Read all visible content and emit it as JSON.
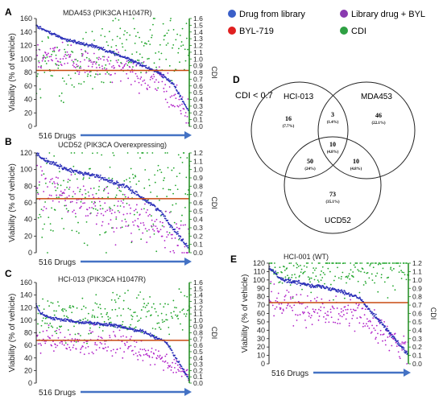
{
  "legend": {
    "items": [
      {
        "label": "Drug from library",
        "color": "#3a5fc8"
      },
      {
        "label": "Library drug + BYL",
        "color": "#8a3ab0"
      },
      {
        "label": "BYL-719",
        "color": "#e02020"
      },
      {
        "label": "CDI",
        "color": "#2ea043"
      }
    ]
  },
  "colors": {
    "curve": "#2b2fb8",
    "combo": "#b020c8",
    "cdi": "#1fa52a",
    "byl_line": "#c84a10",
    "cdi_axis": "#1e8a1e",
    "arrow": "#4472c4"
  },
  "panels": [
    {
      "letter": "A",
      "title": "MDA453 (PIK3CA H1047R)",
      "xlabel": "516 Drugs",
      "ylabel": "Viability (% of vehicle)",
      "y2label": "CDI"
    },
    {
      "letter": "B",
      "title": "UCD52 (PIK3CA Overexpressing)",
      "xlabel": "516 Drugs",
      "ylabel": "Viability (% of vehicle)",
      "y2label": "CDI"
    },
    {
      "letter": "C",
      "title": "HCI-013 (PIK3CA H1047R)",
      "xlabel": "516 Drugs",
      "ylabel": "Viability (% of vehicle)",
      "y2label": "CDI"
    },
    {
      "letter": "E",
      "title": "HCI-001 (WT)",
      "xlabel": "516 Drugs",
      "ylabel": "Viability (% of vehicle)",
      "y2label": "CDI"
    }
  ],
  "venn": {
    "letter": "D",
    "threshold": "CDI < 0.7",
    "sets": [
      "HCI-013",
      "MDA453",
      "UCD52"
    ],
    "regions": [
      {
        "id": "hci013_only",
        "count": "16",
        "pct": "(7.7%)"
      },
      {
        "id": "hci013_mda453",
        "count": "3",
        "pct": "(1.4%)"
      },
      {
        "id": "mda453_only",
        "count": "46",
        "pct": "(22.1%)"
      },
      {
        "id": "all_three",
        "count": "10",
        "pct": "(4.8%)"
      },
      {
        "id": "hci013_ucd52",
        "count": "50",
        "pct": "(24%)"
      },
      {
        "id": "mda453_ucd52",
        "count": "10",
        "pct": "(4.8%)"
      },
      {
        "id": "ucd52_only",
        "count": "73",
        "pct": "(35.1%)"
      }
    ]
  },
  "chart_data": [
    {
      "type": "scatter",
      "title": "MDA453 (PIK3CA H1047R)",
      "xlabel": "516 Drugs",
      "ylabel": "Viability (% of vehicle)",
      "y2label": "CDI",
      "ylim": [
        0,
        160
      ],
      "yticks": [
        0,
        20,
        40,
        60,
        80,
        100,
        120,
        140,
        160
      ],
      "y2lim": [
        0,
        1.6
      ],
      "y2ticks": [
        0,
        0.1,
        0.2,
        0.3,
        0.4,
        0.5,
        0.6,
        0.7,
        0.8,
        0.9,
        1.0,
        1.1,
        1.2,
        1.3,
        1.4,
        1.5,
        1.6
      ],
      "byl719": 83,
      "series": [
        {
          "name": "Drug from library",
          "x": [
            0,
            5,
            20,
            40,
            60,
            80,
            90,
            100
          ],
          "values": [
            150,
            143,
            128,
            118,
            100,
            80,
            62,
            20
          ]
        },
        {
          "name": "Library drug + BYL",
          "x": [
            0,
            20,
            40,
            60,
            80,
            100
          ],
          "values": [
            112,
            100,
            92,
            84,
            65,
            15
          ]
        },
        {
          "name": "CDI",
          "x": [
            0,
            20,
            40,
            60,
            80,
            100
          ],
          "values": [
            0.86,
            0.9,
            1.0,
            1.1,
            1.2,
            1.25
          ]
        }
      ]
    },
    {
      "type": "scatter",
      "title": "UCD52 (PIK3CA Overexpressing)",
      "xlabel": "516 Drugs",
      "ylabel": "Viability (% of vehicle)",
      "y2label": "CDI",
      "ylim": [
        0,
        120
      ],
      "yticks": [
        0,
        20,
        40,
        60,
        80,
        100,
        120
      ],
      "y2lim": [
        0,
        1.2
      ],
      "y2ticks": [
        0,
        0.1,
        0.2,
        0.3,
        0.4,
        0.5,
        0.6,
        0.7,
        0.8,
        0.9,
        1.0,
        1.1,
        1.2
      ],
      "byl719": 65,
      "series": [
        {
          "name": "Drug from library",
          "x": [
            0,
            5,
            20,
            40,
            60,
            80,
            90,
            100
          ],
          "values": [
            120,
            112,
            100,
            92,
            78,
            52,
            28,
            5
          ]
        },
        {
          "name": "Library drug + BYL",
          "x": [
            0,
            20,
            40,
            60,
            80,
            100
          ],
          "values": [
            80,
            65,
            55,
            48,
            30,
            8
          ]
        },
        {
          "name": "CDI",
          "x": [
            0,
            20,
            40,
            60,
            80,
            100
          ],
          "values": [
            0.68,
            0.66,
            0.65,
            0.7,
            0.78,
            0.86
          ]
        }
      ]
    },
    {
      "type": "scatter",
      "title": "HCI-013 (PIK3CA H1047R)",
      "xlabel": "516 Drugs",
      "ylabel": "Viability (% of vehicle)",
      "y2label": "CDI",
      "ylim": [
        0,
        160
      ],
      "yticks": [
        0,
        20,
        40,
        60,
        80,
        100,
        120,
        140,
        160
      ],
      "y2lim": [
        0,
        1.6
      ],
      "y2ticks": [
        0,
        0.1,
        0.2,
        0.3,
        0.4,
        0.5,
        0.6,
        0.7,
        0.8,
        0.9,
        1.0,
        1.1,
        1.2,
        1.3,
        1.4,
        1.5,
        1.6
      ],
      "byl719": 68,
      "series": [
        {
          "name": "Drug from library",
          "x": [
            0,
            3,
            10,
            30,
            50,
            70,
            85,
            95,
            100
          ],
          "values": [
            125,
            110,
            103,
            97,
            92,
            82,
            65,
            25,
            5
          ]
        },
        {
          "name": "Library drug + BYL",
          "x": [
            0,
            20,
            40,
            60,
            80,
            100
          ],
          "values": [
            70,
            65,
            62,
            58,
            45,
            5
          ]
        },
        {
          "name": "CDI",
          "x": [
            0,
            20,
            40,
            60,
            80,
            100
          ],
          "values": [
            1.02,
            1.05,
            1.07,
            1.08,
            1.1,
            1.15
          ]
        }
      ]
    },
    {
      "type": "scatter",
      "title": "HCI-001 (WT)",
      "xlabel": "516 Drugs",
      "ylabel": "Viability (% of vehicle)",
      "y2label": "CDI",
      "ylim": [
        0,
        120
      ],
      "yticks": [
        0,
        10,
        20,
        30,
        40,
        50,
        60,
        70,
        80,
        90,
        100,
        110,
        120
      ],
      "y2lim": [
        0,
        1.2
      ],
      "y2ticks": [
        0,
        0.1,
        0.2,
        0.3,
        0.4,
        0.5,
        0.6,
        0.7,
        0.8,
        0.9,
        1.0,
        1.1,
        1.2
      ],
      "byl719": 73,
      "series": [
        {
          "name": "Drug from library",
          "x": [
            0,
            10,
            30,
            50,
            65,
            80,
            90,
            100
          ],
          "values": [
            115,
            100,
            94,
            88,
            78,
            50,
            30,
            10
          ]
        },
        {
          "name": "Library drug + BYL",
          "x": [
            0,
            20,
            40,
            60,
            80,
            100
          ],
          "values": [
            75,
            68,
            65,
            62,
            40,
            10
          ]
        },
        {
          "name": "CDI",
          "x": [
            0,
            20,
            40,
            60,
            80,
            100
          ],
          "values": [
            1.05,
            1.08,
            1.1,
            1.12,
            1.15,
            1.18
          ]
        }
      ]
    }
  ]
}
